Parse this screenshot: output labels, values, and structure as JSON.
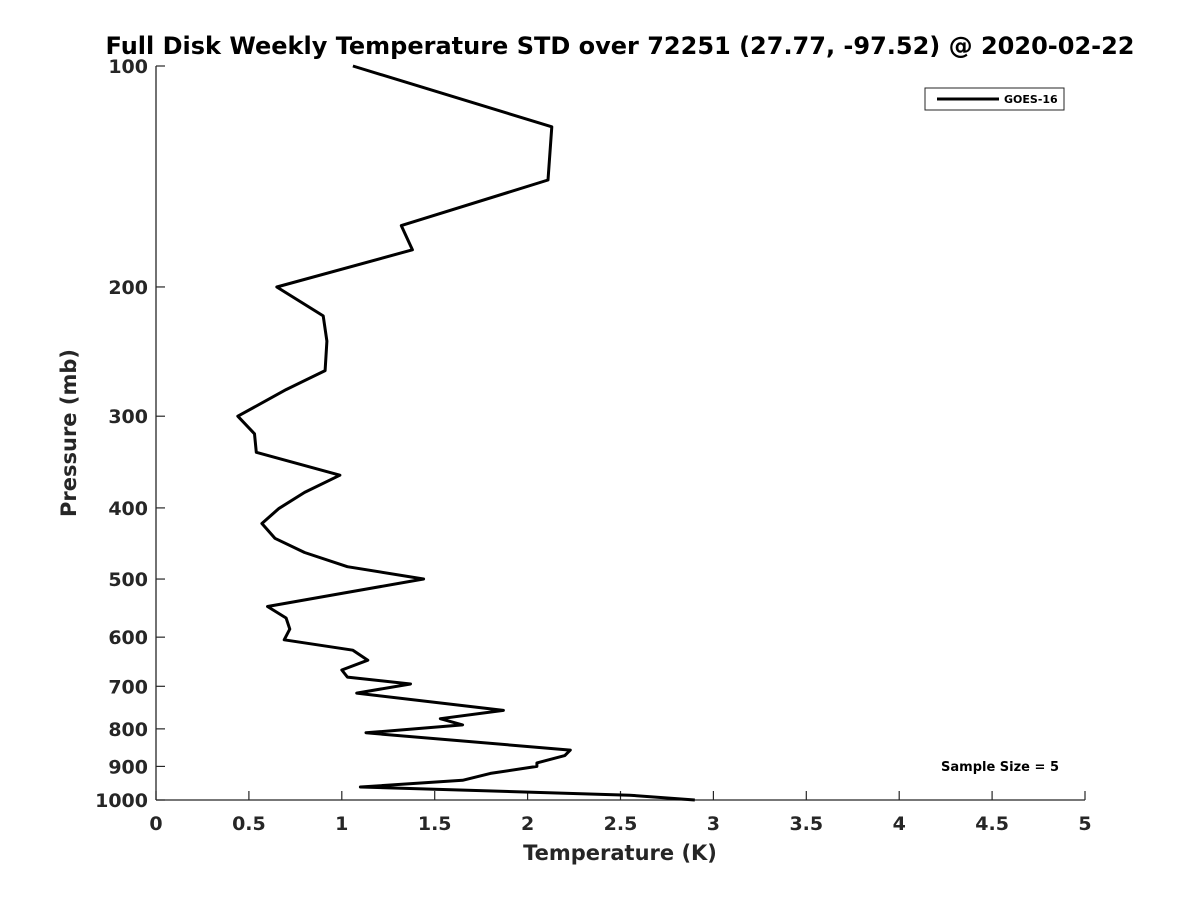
{
  "chart_data": {
    "type": "line",
    "title": "Full Disk Weekly Temperature STD over 72251 (27.77, -97.52) @ 2020-02-22",
    "xlabel": "Temperature (K)",
    "ylabel": "Pressure (mb)",
    "xlim": [
      0,
      5
    ],
    "ylim": [
      100,
      1000
    ],
    "y_scale": "log",
    "y_reversed": true,
    "x_ticks": [
      "0",
      "0.5",
      "1",
      "1.5",
      "2",
      "2.5",
      "3",
      "3.5",
      "4",
      "4.5",
      "5"
    ],
    "x_tick_values": [
      0,
      0.5,
      1,
      1.5,
      2,
      2.5,
      3,
      3.5,
      4,
      4.5,
      5
    ],
    "y_ticks": [
      "100",
      "200",
      "300",
      "400",
      "500",
      "600",
      "700",
      "800",
      "900",
      "1000"
    ],
    "y_tick_values": [
      100,
      200,
      300,
      400,
      500,
      600,
      700,
      800,
      900,
      1000
    ],
    "grid": false,
    "legend_position": "top-right",
    "annotation": "Sample Size = 5",
    "series": [
      {
        "name": "GOES-16",
        "color": "#000000",
        "points": [
          [
            1.06,
            100
          ],
          [
            2.13,
            121
          ],
          [
            2.11,
            143
          ],
          [
            1.32,
            165
          ],
          [
            1.38,
            178
          ],
          [
            0.65,
            200
          ],
          [
            0.9,
            219
          ],
          [
            0.92,
            237
          ],
          [
            0.91,
            260
          ],
          [
            0.7,
            276
          ],
          [
            0.44,
            300
          ],
          [
            0.53,
            317
          ],
          [
            0.54,
            336
          ],
          [
            0.99,
            361
          ],
          [
            0.8,
            381
          ],
          [
            0.66,
            401
          ],
          [
            0.57,
            420
          ],
          [
            0.64,
            440
          ],
          [
            0.8,
            460
          ],
          [
            1.03,
            481
          ],
          [
            1.44,
            500
          ],
          [
            1.0,
            523
          ],
          [
            0.6,
            545
          ],
          [
            0.7,
            565
          ],
          [
            0.72,
            585
          ],
          [
            0.69,
            605
          ],
          [
            1.06,
            625
          ],
          [
            1.14,
            645
          ],
          [
            1.0,
            665
          ],
          [
            1.03,
            680
          ],
          [
            1.37,
            695
          ],
          [
            1.08,
            715
          ],
          [
            1.87,
            755
          ],
          [
            1.53,
            775
          ],
          [
            1.65,
            790
          ],
          [
            1.13,
            810
          ],
          [
            2.23,
            855
          ],
          [
            2.2,
            870
          ],
          [
            2.05,
            890
          ],
          [
            2.05,
            900
          ],
          [
            1.8,
            920
          ],
          [
            1.65,
            940
          ],
          [
            1.1,
            960
          ],
          [
            2.55,
            985
          ],
          [
            2.9,
            1000
          ]
        ]
      }
    ]
  }
}
